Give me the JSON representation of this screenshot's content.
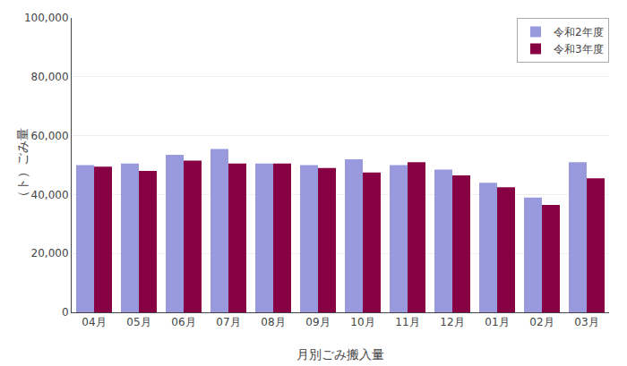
{
  "chart_data": {
    "type": "bar",
    "categories": [
      "04月",
      "05月",
      "06月",
      "07月",
      "08月",
      "09月",
      "10月",
      "11月",
      "12月",
      "01月",
      "02月",
      "03月"
    ],
    "series": [
      {
        "name": "令和2年度",
        "color": "#9999dd",
        "values": [
          50000,
          50500,
          53500,
          55500,
          50500,
          50000,
          52000,
          50000,
          48500,
          44000,
          39000,
          51000
        ]
      },
      {
        "name": "令和3年度",
        "color": "#880044",
        "values": [
          49500,
          48000,
          51500,
          50500,
          50500,
          49000,
          47500,
          51000,
          46500,
          42500,
          36500,
          45500
        ]
      }
    ],
    "xlabel": "月別ごみ搬入量",
    "ylabel": "（ト）ごみ量",
    "ylim": [
      0,
      100000
    ],
    "yticks": [
      0,
      {
        "value": 20000,
        "label": "20,000"
      },
      {
        "value": 40000,
        "label": "40,000"
      },
      {
        "value": 60000,
        "label": "60,000"
      },
      {
        "value": 80000,
        "label": "80,000"
      },
      {
        "value": 100000,
        "label": "100,000"
      }
    ],
    "grid": true,
    "legend": "upper right"
  }
}
